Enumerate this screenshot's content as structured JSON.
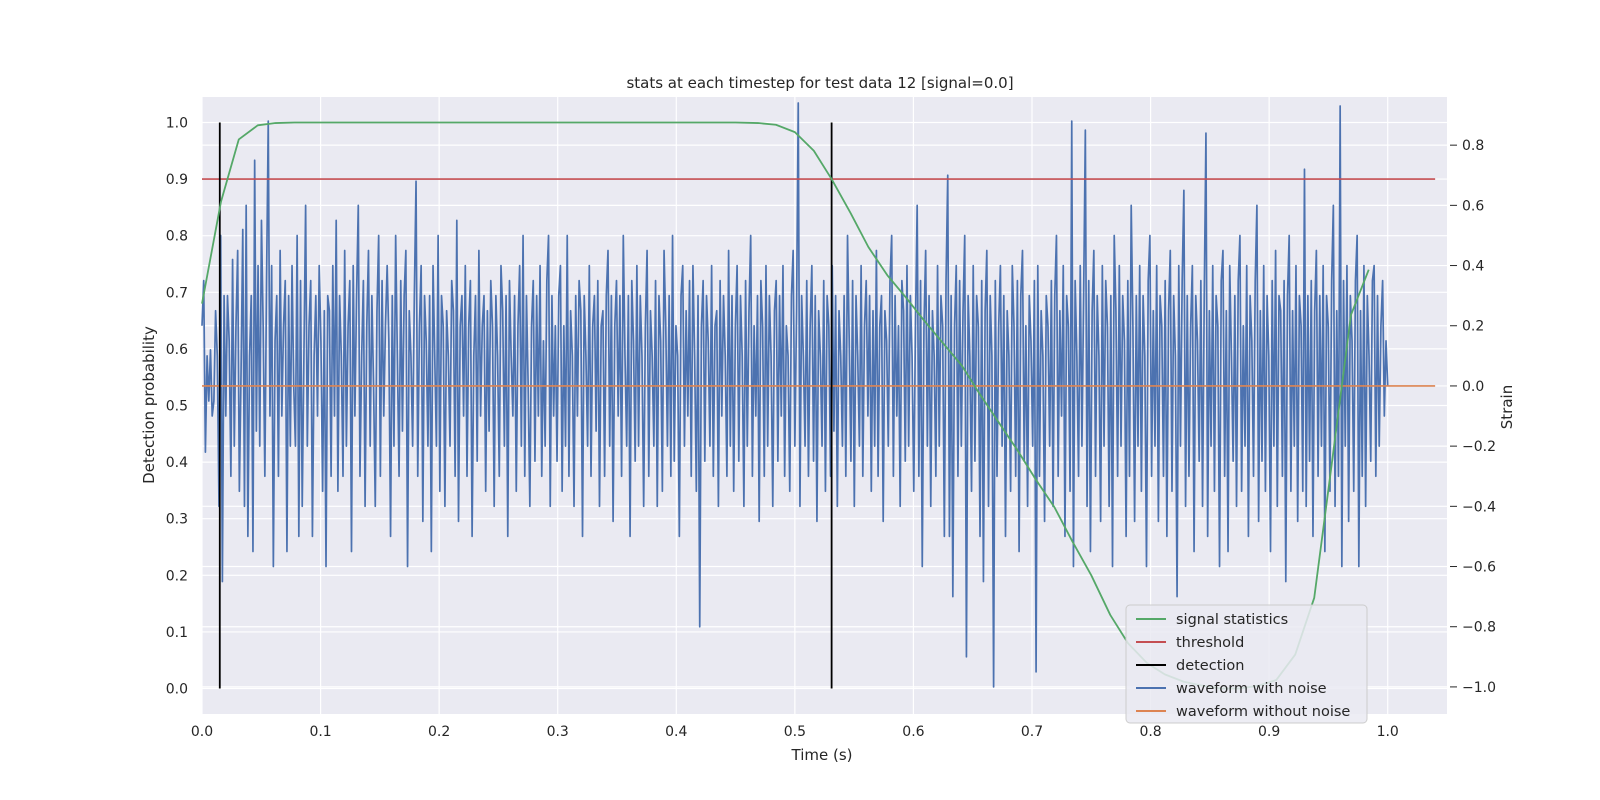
{
  "chart_data": {
    "type": "line",
    "title": "stats at each timestep for test data 12 [signal=0.0]",
    "xlabel": "Time (s)",
    "ylabel": "Detection probability",
    "y2label": "Strain",
    "xlim": [
      0.0,
      1.05
    ],
    "ylim": [
      -0.045,
      1.045
    ],
    "y2lim": [
      -1.09,
      0.96
    ],
    "xticks": [
      "0.0",
      "0.1",
      "0.2",
      "0.3",
      "0.4",
      "0.5",
      "0.6",
      "0.7",
      "0.8",
      "0.9",
      "1.0"
    ],
    "yticks": [
      "0.0",
      "0.1",
      "0.2",
      "0.3",
      "0.4",
      "0.5",
      "0.6",
      "0.7",
      "0.8",
      "0.9",
      "1.0"
    ],
    "y2ticks": [
      "−1.0",
      "−0.8",
      "−0.6",
      "−0.4",
      "−0.2",
      "0.0",
      "0.2",
      "0.4",
      "0.6",
      "0.8"
    ],
    "grid": true,
    "legend_position": "lower-right",
    "colors": {
      "background": "#eaeaf2",
      "signal_statistics": "#55a868",
      "threshold": "#c44e52",
      "detection": "#000000",
      "waveform_with_noise": "#4c72b0",
      "waveform_without_noise": "#dd8452"
    },
    "series": [
      {
        "name": "signal statistics",
        "axis": "left",
        "x": [
          0.0,
          0.016,
          0.031,
          0.047,
          0.062,
          0.078,
          0.1,
          0.2,
          0.3,
          0.4,
          0.45,
          0.469,
          0.484,
          0.5,
          0.516,
          0.531,
          0.547,
          0.562,
          0.578,
          0.594,
          0.609,
          0.625,
          0.641,
          0.656,
          0.672,
          0.688,
          0.703,
          0.719,
          0.734,
          0.75,
          0.766,
          0.781,
          0.797,
          0.812,
          0.828,
          0.844,
          0.859,
          0.875,
          0.891,
          0.906,
          0.922,
          0.938,
          0.953,
          0.969,
          0.984
        ],
        "y": [
          0.68,
          0.86,
          0.97,
          0.995,
          0.999,
          1.0,
          1.0,
          1.0,
          1.0,
          1.0,
          1.0,
          0.999,
          0.996,
          0.983,
          0.95,
          0.9,
          0.84,
          0.78,
          0.73,
          0.69,
          0.65,
          0.61,
          0.57,
          0.52,
          0.47,
          0.42,
          0.37,
          0.32,
          0.26,
          0.2,
          0.13,
          0.08,
          0.045,
          0.025,
          0.012,
          0.005,
          0.0,
          0.0,
          0.005,
          0.015,
          0.06,
          0.16,
          0.4,
          0.66,
          0.74
        ]
      },
      {
        "name": "threshold",
        "axis": "left",
        "x": [
          0.0,
          1.04
        ],
        "y": [
          0.9,
          0.9
        ]
      },
      {
        "name": "detection",
        "axis": "left",
        "type": "vlines",
        "x": [
          0.015,
          0.531
        ],
        "ymin": 0.0,
        "ymax": 1.0
      },
      {
        "name": "waveform with noise",
        "axis": "right",
        "x_range": [
          0.0,
          1.0
        ],
        "y": [
          0.2,
          0.35,
          -0.22,
          0.1,
          -0.05,
          0.12,
          -0.1,
          -0.05,
          0.25,
          0.1,
          -0.4,
          0.5,
          -0.65,
          0.3,
          -0.1,
          0.3,
          0.15,
          -0.3,
          0.42,
          -0.2,
          0.2,
          0.45,
          -0.35,
          0.05,
          0.52,
          -0.4,
          0.6,
          -0.5,
          0.1,
          0.3,
          -0.55,
          0.75,
          -0.15,
          0.4,
          -0.2,
          0.55,
          0.2,
          -0.3,
          0.35,
          0.88,
          -0.1,
          0.4,
          -0.6,
          0.15,
          0.3,
          -0.3,
          0.45,
          -0.1,
          0.2,
          0.35,
          -0.55,
          0.3,
          -0.2,
          0.4,
          0.0,
          -0.2,
          0.5,
          -0.5,
          0.35,
          -0.4,
          0.1,
          0.6,
          -0.2,
          0.2,
          0.35,
          -0.5,
          0.1,
          0.3,
          -0.1,
          0.4,
          0.15,
          -0.35,
          0.25,
          -0.6,
          0.3,
          0.25,
          -0.3,
          0.4,
          -0.1,
          0.55,
          -0.35,
          0.3,
          0.1,
          -0.3,
          0.45,
          -0.2,
          0.2,
          0.35,
          -0.55,
          0.4,
          -0.1,
          0.3,
          0.6,
          -0.3,
          0.1,
          0.35,
          -0.4,
          0.2,
          0.45,
          -0.2,
          0.3,
          0.0,
          -0.4,
          0.25,
          0.5,
          -0.3,
          0.35,
          -0.1,
          0.2,
          0.4,
          0.15,
          -0.5,
          0.3,
          -0.2,
          0.5,
          0.1,
          -0.3,
          0.35,
          -0.15,
          0.3,
          0.45,
          -0.6,
          0.25,
          0.1,
          -0.2,
          0.3,
          0.68,
          -0.3,
          0.2,
          0.4,
          -0.45,
          0.3,
          0.15,
          -0.2,
          0.3,
          -0.55,
          0.4,
          0.1,
          -0.2,
          0.5,
          -0.35,
          0.3,
          0.2,
          -0.4,
          0.25,
          0.1,
          -0.2,
          0.35,
          0.25,
          -0.3,
          0.55,
          -0.45,
          0.2,
          0.3,
          -0.1,
          0.4,
          -0.3,
          0.2,
          0.35,
          -0.5,
          0.1,
          0.3,
          -0.25,
          0.45,
          -0.1,
          0.2,
          0.3,
          -0.35,
          0.25,
          -0.15,
          0.35,
          0.2,
          -0.4,
          0.3,
          0.1,
          -0.3,
          0.4,
          0.25,
          -0.2,
          0.3,
          -0.5,
          0.35,
          0.1,
          -0.1,
          0.3,
          -0.35,
          0.2,
          0.4,
          -0.2,
          0.5,
          -0.3,
          0.3,
          0.0,
          -0.4,
          0.2,
          0.35,
          -0.25,
          0.3,
          -0.1,
          0.4,
          -0.3,
          0.15,
          -0.2,
          0.35,
          0.5,
          -0.4,
          0.3,
          -0.1,
          0.2,
          -0.25,
          0.3,
          0.4,
          -0.35,
          0.2,
          -0.2,
          0.5,
          -0.3,
          0.25,
          0.1,
          -0.4,
          0.3,
          -0.1,
          0.35,
          0.25,
          -0.5,
          0.3,
          0.1,
          -0.2,
          0.4,
          -0.3,
          0.2,
          0.3,
          -0.15,
          0.35,
          -0.4,
          0.2,
          0.25,
          -0.3,
          0.3,
          0.45,
          -0.2,
          0.3,
          -0.45,
          0.2,
          0.35,
          -0.1,
          0.3,
          -0.3,
          0.5,
          0.1,
          -0.2,
          0.3,
          -0.5,
          0.35,
          0.15,
          -0.25,
          0.4,
          -0.2,
          0.3,
          0.1,
          -0.4,
          0.2,
          0.45,
          -0.3,
          0.25,
          0.1,
          -0.2,
          0.35,
          -0.4,
          0.3,
          0.15,
          -0.35,
          0.45,
          0.2,
          -0.2,
          0.3,
          -0.3,
          0.5,
          -0.25,
          0.2,
          0.1,
          -0.5,
          0.3,
          0.4,
          -0.2,
          0.25,
          -0.1,
          0.35,
          -0.3,
          0.4,
          0.1,
          -0.35,
          0.3,
          -0.8,
          0.2,
          0.35,
          -0.25,
          0.3,
          0.15,
          -0.2,
          0.4,
          -0.3,
          0.2,
          0.25,
          -0.4,
          0.35,
          -0.1,
          0.3,
          0.1,
          -0.3,
          0.45,
          -0.2,
          0.3,
          -0.35,
          0.2,
          0.4,
          -0.25,
          0.3,
          0.1,
          -0.4,
          0.35,
          -0.2,
          0.25,
          0.5,
          -0.3,
          0.2,
          -0.1,
          0.3,
          -0.45,
          0.35,
          0.2,
          -0.3,
          0.4,
          -0.2,
          0.3,
          0.1,
          -0.4,
          0.25,
          0.35,
          -0.25,
          0.3,
          -0.1,
          0.4,
          -0.3,
          0.2,
          0.1,
          -0.35,
          0.3,
          0.45,
          -0.2,
          0.25,
          0.94,
          -0.4,
          0.3,
          0.1,
          -0.2,
          0.35,
          -0.3,
          0.2,
          0.4,
          -0.25,
          0.3,
          -0.45,
          0.25,
          0.1,
          -0.2,
          0.35,
          -0.35,
          0.3,
          0.2,
          -0.3,
          0.4,
          -0.15,
          0.3,
          -0.4,
          0.25,
          0.1,
          -0.2,
          0.3,
          -0.3,
          0.5,
          0.15,
          -0.25,
          0.35,
          -0.4,
          0.3,
          0.1,
          -0.2,
          0.4,
          -0.3,
          0.2,
          0.35,
          -0.1,
          0.3,
          -0.35,
          0.25,
          -0.2,
          0.45,
          -0.3,
          0.2,
          0.3,
          -0.45,
          0.25,
          0.15,
          -0.2,
          0.35,
          0.5,
          -0.3,
          0.3,
          -0.1,
          0.2,
          -0.4,
          0.35,
          0.25,
          -0.25,
          0.4,
          -0.2,
          0.3,
          0.1,
          -0.35,
          0.2,
          0.6,
          -0.3,
          0.35,
          -0.6,
          0.2,
          0.45,
          -0.2,
          0.3,
          -0.4,
          0.25,
          0.1,
          -0.3,
          0.4,
          -0.2,
          0.3,
          0.2,
          -0.5,
          0.35,
          0.7,
          -0.5,
          0.3,
          -0.7,
          0.2,
          0.4,
          -0.3,
          0.35,
          -0.2,
          0.25,
          0.5,
          -0.9,
          0.3,
          0.1,
          -0.35,
          0.4,
          -0.25,
          0.3,
          0.2,
          -0.5,
          0.35,
          -0.65,
          0.25,
          0.45,
          -0.4,
          0.3,
          0.1,
          -1.0,
          0.35,
          -0.3,
          0.2,
          0.4,
          -0.2,
          0.3,
          -0.5,
          0.25,
          0.1,
          -0.35,
          0.4,
          0.2,
          -0.3,
          0.35,
          -0.55,
          0.3,
          0.45,
          -0.25,
          0.2,
          -0.4,
          0.3,
          0.15,
          -0.2,
          0.35,
          -0.95,
          0.4,
          -0.3,
          0.25,
          0.1,
          -0.45,
          0.3,
          0.2,
          -0.2,
          0.35,
          -0.4,
          0.3,
          0.5,
          -0.3,
          0.25,
          -0.1,
          0.4,
          -0.5,
          0.3,
          0.2,
          -0.35,
          0.88,
          -0.6,
          0.35,
          0.1,
          -0.3,
          0.4,
          -0.2,
          0.3,
          0.85,
          -0.4,
          0.35,
          -0.55,
          0.25,
          0.45,
          -0.3,
          0.3,
          0.1,
          -0.45,
          0.4,
          -0.2,
          0.35,
          0.2,
          -0.4,
          0.3,
          -0.6,
          0.5,
          0.25,
          -0.3,
          0.4,
          -0.2,
          0.3,
          0.15,
          -0.5,
          0.35,
          -0.3,
          0.6,
          0.2,
          -0.45,
          0.3,
          -0.2,
          0.4,
          -0.35,
          0.3,
          0.1,
          -0.6,
          0.35,
          0.5,
          -0.3,
          0.25,
          -0.2,
          0.4,
          -0.45,
          0.3,
          0.2,
          -0.3,
          0.35,
          -0.5,
          0.25,
          0.45,
          -0.35,
          0.3,
          0.1,
          -0.7,
          0.4,
          -0.2,
          0.35,
          0.65,
          -0.4,
          0.3,
          -0.3,
          0.2,
          0.4,
          -0.55,
          0.3,
          0.15,
          -0.25,
          0.35,
          -0.4,
          0.3,
          0.84,
          -0.5,
          0.25,
          -0.2,
          0.4,
          -0.35,
          0.3,
          0.2,
          -0.6,
          0.35,
          0.45,
          -0.3,
          0.25,
          -0.55,
          0.4,
          0.1,
          -0.25,
          0.3,
          -0.4,
          0.35,
          0.5,
          -0.35,
          0.2,
          -0.2,
          0.4,
          -0.5,
          0.3,
          0.15,
          -0.3,
          0.35,
          0.6,
          -0.45,
          0.25,
          -0.25,
          0.4,
          -0.35,
          0.3,
          0.1,
          -0.55,
          0.35,
          -0.2,
          0.45,
          -0.4,
          0.3,
          0.25,
          -0.3,
          0.35,
          -0.65,
          0.3,
          0.5,
          -0.35,
          0.25,
          -0.2,
          0.4,
          -0.45,
          0.3,
          0.2,
          -0.35,
          0.72,
          -0.4,
          0.3,
          -0.25,
          0.35,
          -0.5,
          0.25,
          0.45,
          -0.3,
          0.3,
          -0.2,
          0.4,
          -0.55,
          0.3,
          0.2,
          -0.35,
          0.35,
          0.6,
          -0.4,
          0.25,
          -0.3,
          0.93,
          -0.6,
          0.35,
          -0.2,
          0.4,
          -0.45,
          0.3,
          0.15,
          -0.35,
          0.35,
          0.5,
          -0.6,
          0.25,
          -0.3,
          0.4,
          -0.4,
          0.3,
          0.1,
          -0.25,
          0.35,
          0.4,
          -0.3,
          0.3,
          -0.2,
          0.2,
          0.35,
          -0.1,
          0.15,
          0.0
        ]
      },
      {
        "name": "waveform without noise",
        "axis": "right",
        "x": [
          0.0,
          1.04
        ],
        "y": [
          0.0,
          0.0
        ]
      }
    ]
  }
}
